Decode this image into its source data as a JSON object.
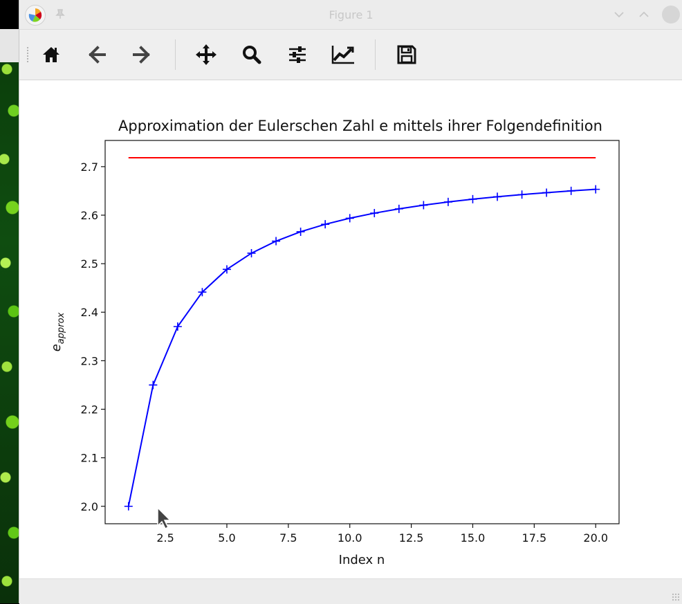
{
  "window": {
    "title": "Figure 1"
  },
  "toolbar": {
    "tools": [
      {
        "name": "home-button",
        "icon": "home-icon"
      },
      {
        "name": "back-button",
        "icon": "arrow-left-icon"
      },
      {
        "name": "forward-button",
        "icon": "arrow-right-icon"
      },
      {
        "name": "pan-button",
        "icon": "move-icon"
      },
      {
        "name": "zoom-button",
        "icon": "magnifier-icon"
      },
      {
        "name": "subplots-button",
        "icon": "sliders-icon"
      },
      {
        "name": "axes-edit-button",
        "icon": "line-chart-icon"
      },
      {
        "name": "save-button",
        "icon": "floppy-disk-icon"
      }
    ]
  },
  "colors": {
    "approx_line": "#0000ff",
    "reference_line": "#ff0000"
  },
  "chart_data": {
    "type": "line",
    "title": "Approximation der Eulerschen Zahl e mittels ihrer Folgendefinition",
    "xlabel": "Index n",
    "ylabel_base": "e",
    "ylabel_sub": "approx",
    "xlim": [
      0.05,
      20.95
    ],
    "ylim": [
      1.964,
      2.754
    ],
    "xticks": [
      2.5,
      5.0,
      7.5,
      10.0,
      12.5,
      15.0,
      17.5,
      20.0
    ],
    "xtick_labels": [
      "2.5",
      "5.0",
      "7.5",
      "10.0",
      "12.5",
      "15.0",
      "17.5",
      "20.0"
    ],
    "yticks": [
      2.0,
      2.1,
      2.2,
      2.3,
      2.4,
      2.5,
      2.6,
      2.7
    ],
    "ytick_labels": [
      "2.0",
      "2.1",
      "2.2",
      "2.3",
      "2.4",
      "2.5",
      "2.6",
      "2.7"
    ],
    "grid": false,
    "series": [
      {
        "marker": "+",
        "color": "#0000ff",
        "x": [
          1,
          2,
          3,
          4,
          5,
          6,
          7,
          8,
          9,
          10,
          11,
          12,
          13,
          14,
          15,
          16,
          17,
          18,
          19,
          20
        ],
        "values": [
          2.0,
          2.25,
          2.3704,
          2.4414,
          2.4883,
          2.5216,
          2.5465,
          2.5658,
          2.5812,
          2.5937,
          2.6042,
          2.613,
          2.6206,
          2.6272,
          2.6329,
          2.6379,
          2.6424,
          2.6464,
          2.65,
          2.6533
        ]
      },
      {
        "color": "#ff0000",
        "x": [
          1,
          20
        ],
        "values": [
          2.71828,
          2.71828
        ]
      }
    ]
  }
}
